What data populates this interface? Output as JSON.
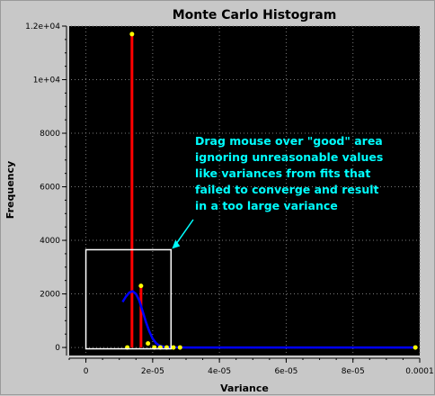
{
  "window": {
    "title": "Monte Carlo Histogram"
  },
  "colors": {
    "plot_background": "#000000",
    "grid": "#7a7a7a",
    "histogram_bar": "#ff0000",
    "histogram_points": "#ffff00",
    "fit_curve": "#0000ff",
    "selection_box": "#ffffff",
    "annotation": "#00ffff"
  },
  "chart_data": {
    "type": "scatter",
    "title": "Monte Carlo Histogram",
    "xlabel": "Variance",
    "ylabel": "Frequency",
    "xlim": [
      -5e-06,
      0.0001
    ],
    "ylim": [
      -300,
      12000
    ],
    "grid": true,
    "x_ticks": [
      0,
      2e-05,
      4e-05,
      6e-05,
      8e-05,
      0.0001
    ],
    "x_tick_labels": [
      "0",
      "2e-05",
      "4e-05",
      "6e-05",
      "8e-05",
      "0.0001"
    ],
    "y_ticks": [
      0,
      2000,
      4000,
      6000,
      8000,
      10000,
      12000
    ],
    "y_tick_labels": [
      "0",
      "2000",
      "4000",
      "6000",
      "8000",
      "1e+04",
      "1.2e+04"
    ],
    "bars": [
      {
        "x": 1.38e-05,
        "value": 11700
      },
      {
        "x": 1.65e-05,
        "value": 2300
      }
    ],
    "points": [
      {
        "x": 1.24e-05,
        "y": 0
      },
      {
        "x": 1.38e-05,
        "y": 11700
      },
      {
        "x": 1.65e-05,
        "y": 2300
      },
      {
        "x": 1.86e-05,
        "y": 150
      },
      {
        "x": 2.05e-05,
        "y": 0
      },
      {
        "x": 2.23e-05,
        "y": 0
      },
      {
        "x": 2.42e-05,
        "y": 0
      },
      {
        "x": 2.62e-05,
        "y": 0
      },
      {
        "x": 2.82e-05,
        "y": 0
      },
      {
        "x": 9.87e-05,
        "y": 0
      }
    ],
    "fit_curve": [
      [
        1.1e-05,
        1700
      ],
      [
        1.2e-05,
        1900
      ],
      [
        1.3e-05,
        2050
      ],
      [
        1.4e-05,
        2100
      ],
      [
        1.5e-05,
        2000
      ],
      [
        1.6e-05,
        1750
      ],
      [
        1.7e-05,
        1350
      ],
      [
        1.8e-05,
        950
      ],
      [
        1.9e-05,
        600
      ],
      [
        2e-05,
        330
      ],
      [
        2.1e-05,
        160
      ],
      [
        2.2e-05,
        70
      ],
      [
        2.35e-05,
        20
      ],
      [
        2.6e-05,
        5
      ],
      [
        3e-05,
        0
      ],
      [
        9.87e-05,
        0
      ]
    ],
    "selection_box": {
      "x0": 0.0,
      "x1": 2.55e-05,
      "y0": -50,
      "y1": 3650
    },
    "annotation": {
      "lines": [
        "Drag mouse over \"good\" area",
        "ignoring unreasonable values",
        "like variances from fits that",
        "failed to converge and result",
        "in a too large variance"
      ]
    }
  }
}
